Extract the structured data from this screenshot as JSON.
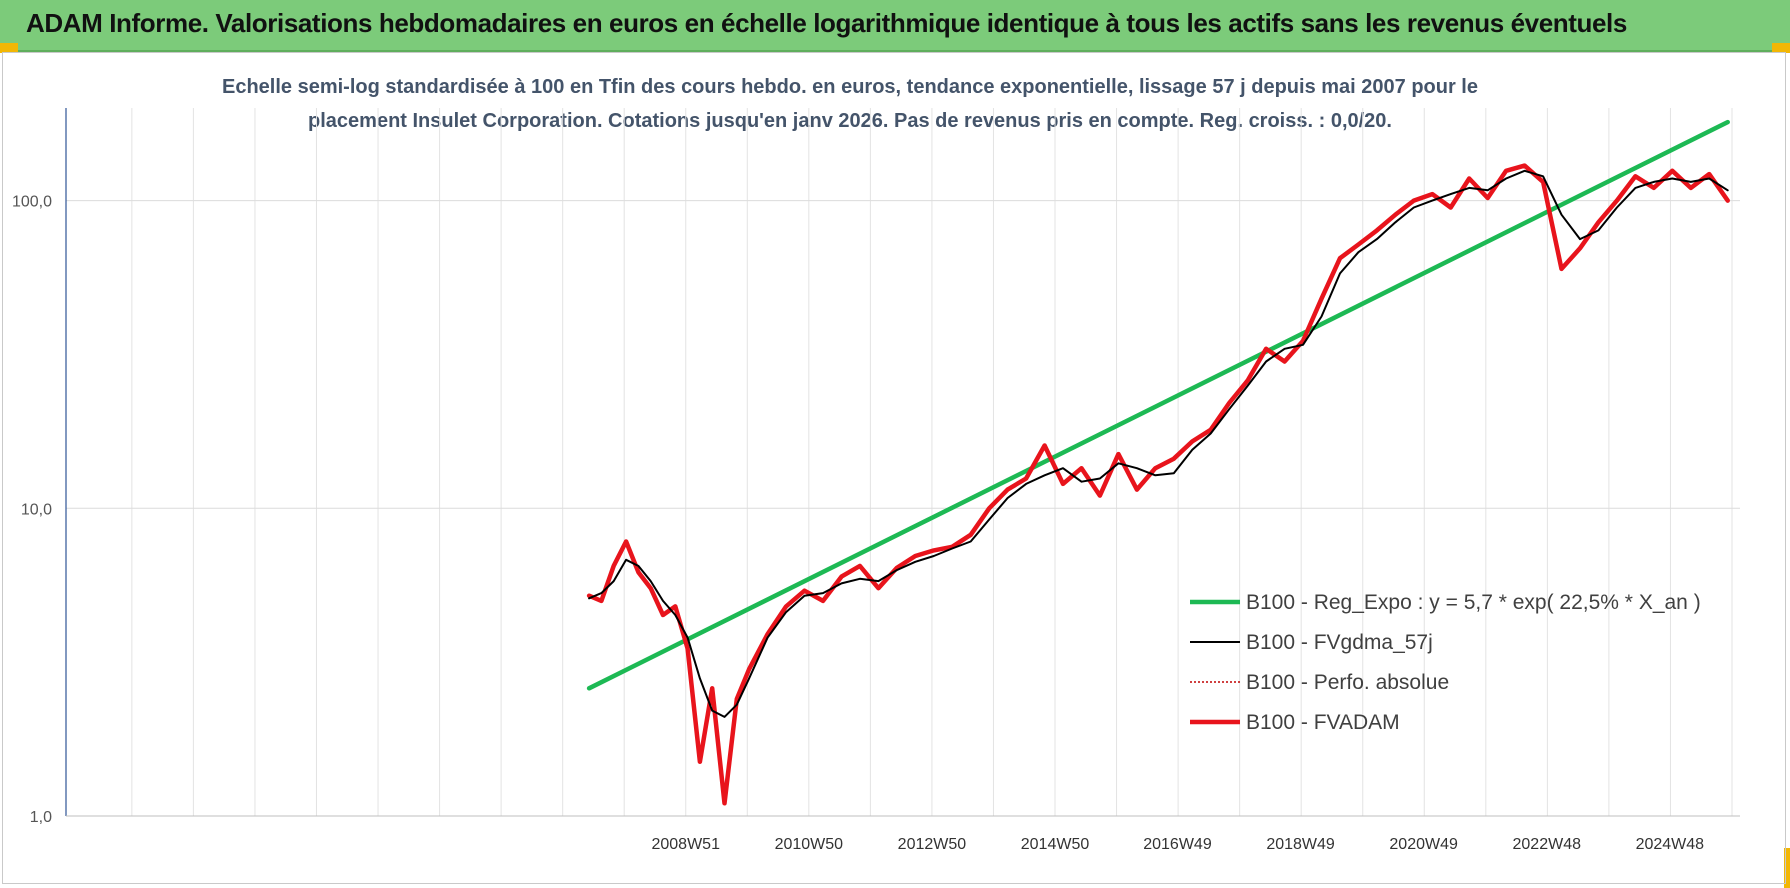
{
  "header": {
    "title": "ADAM Informe. Valorisations hebdomadaires en euros en échelle logarithmique identique à tous les actifs sans les revenus éventuels"
  },
  "chart_data": {
    "type": "line",
    "subtitle_line1": "Echelle semi-log standardisée à 100 en Tfin des cours hebdo. en euros, tendance exponentielle, lissage 57 j depuis mai 2007 pour le",
    "subtitle_line2": "placement Insulet Corporation. Cotations jusqu'en janv 2026.  Pas de revenus pris en compte. Reg. croiss. : 0,0/20.",
    "yscale": "log",
    "ylim": [
      1,
      200
    ],
    "y_ticks": [
      {
        "value": 1,
        "label": "1,0"
      },
      {
        "value": 10,
        "label": "10,0"
      },
      {
        "value": 100,
        "label": "100,0"
      }
    ],
    "xlim": [
      1998.9,
      2026.1
    ],
    "x_ticks": [
      {
        "value": 2008.97,
        "label": "2008W51"
      },
      {
        "value": 2010.97,
        "label": "2010W50"
      },
      {
        "value": 2012.97,
        "label": "2012W50"
      },
      {
        "value": 2014.97,
        "label": "2014W50"
      },
      {
        "value": 2016.96,
        "label": "2016W49"
      },
      {
        "value": 2018.96,
        "label": "2018W49"
      },
      {
        "value": 2020.96,
        "label": "2020W49"
      },
      {
        "value": 2022.96,
        "label": "2022W48"
      },
      {
        "value": 2024.96,
        "label": "2024W48"
      }
    ],
    "grid": true,
    "legend_position": "bottom-right",
    "series": [
      {
        "name": "B100 - Reg_Expo : y = 5,7 * exp( 22,5% *  X_an )",
        "color": "#1db954",
        "style": "thick",
        "x": [
          2007.4,
          2025.9
        ],
        "y": [
          2.6,
          180
        ]
      },
      {
        "name": "B100 - FVgdma_57j",
        "color": "#000000",
        "style": "thin",
        "x": [
          2007.4,
          2007.6,
          2007.8,
          2008.0,
          2008.2,
          2008.4,
          2008.6,
          2008.8,
          2009.0,
          2009.2,
          2009.4,
          2009.6,
          2009.8,
          2010.0,
          2010.3,
          2010.6,
          2010.9,
          2011.2,
          2011.5,
          2011.8,
          2012.1,
          2012.4,
          2012.7,
          2013.0,
          2013.3,
          2013.6,
          2013.9,
          2014.2,
          2014.5,
          2014.8,
          2015.1,
          2015.4,
          2015.7,
          2016.0,
          2016.3,
          2016.6,
          2016.9,
          2017.2,
          2017.5,
          2017.8,
          2018.1,
          2018.4,
          2018.7,
          2019.0,
          2019.3,
          2019.6,
          2019.9,
          2020.2,
          2020.5,
          2020.8,
          2021.1,
          2021.4,
          2021.7,
          2022.0,
          2022.3,
          2022.6,
          2022.9,
          2023.2,
          2023.5,
          2023.8,
          2024.1,
          2024.4,
          2024.7,
          2025.0,
          2025.3,
          2025.6,
          2025.9
        ],
        "y": [
          5.1,
          5.3,
          5.8,
          6.8,
          6.5,
          5.8,
          5.0,
          4.5,
          3.8,
          2.8,
          2.2,
          2.1,
          2.3,
          2.8,
          3.8,
          4.6,
          5.2,
          5.3,
          5.7,
          5.9,
          5.8,
          6.3,
          6.7,
          7.0,
          7.4,
          7.8,
          9.2,
          10.8,
          12.0,
          12.8,
          13.5,
          12.2,
          12.5,
          14.0,
          13.5,
          12.8,
          13.0,
          15.5,
          17.5,
          21.0,
          25.0,
          30.0,
          33.0,
          34.0,
          42.0,
          58.0,
          68.0,
          75.0,
          85.0,
          95.0,
          100.0,
          105.0,
          110.0,
          108.0,
          118.0,
          125.0,
          120.0,
          90.0,
          75.0,
          80.0,
          95.0,
          110.0,
          115.0,
          118.0,
          115.0,
          118.0,
          108.0
        ]
      },
      {
        "name": "B100 - Perfo. absolue",
        "color": "#c00000",
        "style": "dotted",
        "x": [
          2007.4,
          2007.6,
          2007.8,
          2008.0,
          2008.2,
          2008.4,
          2008.6,
          2008.8,
          2009.0,
          2009.2,
          2009.4,
          2009.6,
          2009.8,
          2010.0,
          2010.3,
          2010.6,
          2010.9,
          2011.2,
          2011.5,
          2011.8,
          2012.1,
          2012.4,
          2012.7,
          2013.0,
          2013.3,
          2013.6,
          2013.9,
          2014.2,
          2014.5,
          2014.8,
          2015.1,
          2015.4,
          2015.7,
          2016.0,
          2016.3,
          2016.6,
          2016.9,
          2017.2,
          2017.5,
          2017.8,
          2018.1,
          2018.4,
          2018.7,
          2019.0,
          2019.3,
          2019.6,
          2019.9,
          2020.2,
          2020.5,
          2020.8,
          2021.1,
          2021.4,
          2021.7,
          2022.0,
          2022.3,
          2022.6,
          2022.9,
          2023.2,
          2023.5,
          2023.8,
          2024.1,
          2024.4,
          2024.7,
          2025.0,
          2025.3,
          2025.6,
          2025.9
        ],
        "y": [
          5.2,
          5.0,
          6.5,
          7.8,
          6.2,
          5.5,
          4.5,
          4.8,
          3.5,
          1.5,
          2.6,
          1.1,
          2.4,
          3.0,
          3.9,
          4.8,
          5.4,
          5.0,
          6.0,
          6.5,
          5.5,
          6.4,
          7.0,
          7.3,
          7.5,
          8.2,
          10.0,
          11.5,
          12.5,
          16.0,
          12.0,
          13.5,
          11.0,
          15.0,
          11.5,
          13.5,
          14.5,
          16.5,
          18.0,
          22.0,
          26.0,
          33.0,
          30.0,
          35.0,
          48.0,
          65.0,
          72.0,
          80.0,
          90.0,
          100.0,
          105.0,
          95.0,
          118.0,
          102.0,
          125.0,
          130.0,
          115.0,
          60.0,
          70.0,
          85.0,
          100.0,
          120.0,
          110.0,
          125.0,
          110.0,
          122.0,
          100.0
        ]
      },
      {
        "name": "B100 - FVADAM",
        "color": "#e8141c",
        "style": "thick",
        "x": [
          2007.4,
          2007.6,
          2007.8,
          2008.0,
          2008.2,
          2008.4,
          2008.6,
          2008.8,
          2009.0,
          2009.2,
          2009.4,
          2009.6,
          2009.8,
          2010.0,
          2010.3,
          2010.6,
          2010.9,
          2011.2,
          2011.5,
          2011.8,
          2012.1,
          2012.4,
          2012.7,
          2013.0,
          2013.3,
          2013.6,
          2013.9,
          2014.2,
          2014.5,
          2014.8,
          2015.1,
          2015.4,
          2015.7,
          2016.0,
          2016.3,
          2016.6,
          2016.9,
          2017.2,
          2017.5,
          2017.8,
          2018.1,
          2018.4,
          2018.7,
          2019.0,
          2019.3,
          2019.6,
          2019.9,
          2020.2,
          2020.5,
          2020.8,
          2021.1,
          2021.4,
          2021.7,
          2022.0,
          2022.3,
          2022.6,
          2022.9,
          2023.2,
          2023.5,
          2023.8,
          2024.1,
          2024.4,
          2024.7,
          2025.0,
          2025.3,
          2025.6,
          2025.9
        ],
        "y": [
          5.2,
          5.0,
          6.5,
          7.8,
          6.2,
          5.5,
          4.5,
          4.8,
          3.5,
          1.5,
          2.6,
          1.1,
          2.4,
          3.0,
          3.9,
          4.8,
          5.4,
          5.0,
          6.0,
          6.5,
          5.5,
          6.4,
          7.0,
          7.3,
          7.5,
          8.2,
          10.0,
          11.5,
          12.5,
          16.0,
          12.0,
          13.5,
          11.0,
          15.0,
          11.5,
          13.5,
          14.5,
          16.5,
          18.0,
          22.0,
          26.0,
          33.0,
          30.0,
          35.0,
          48.0,
          65.0,
          72.0,
          80.0,
          90.0,
          100.0,
          105.0,
          95.0,
          118.0,
          102.0,
          125.0,
          130.0,
          115.0,
          60.0,
          70.0,
          85.0,
          100.0,
          120.0,
          110.0,
          125.0,
          110.0,
          122.0,
          100.0
        ]
      }
    ]
  }
}
